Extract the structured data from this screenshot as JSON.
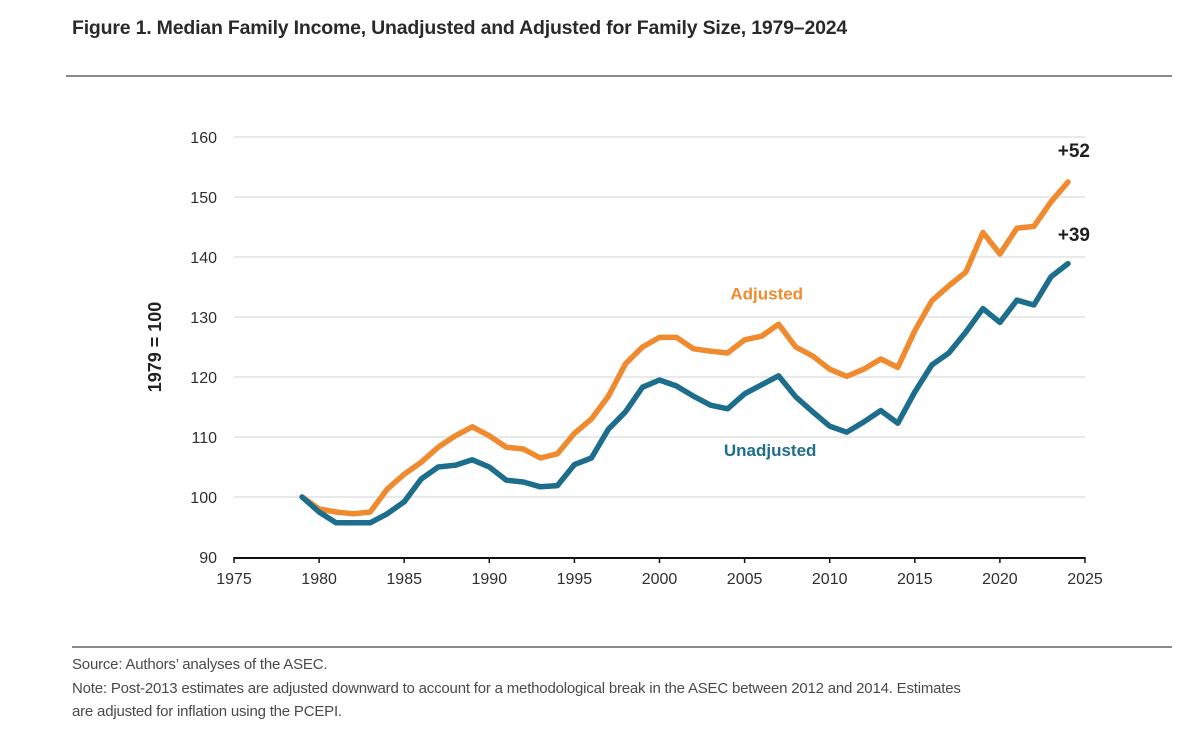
{
  "header": {
    "title": "Figure 1. Median Family Income, Unadjusted and Adjusted for Family Size, 1979–2024"
  },
  "footer": {
    "source": "Source: Authors’ analyses of the ASEC.",
    "note_line1": "Note: Post-2013 estimates are adjusted downward to account for a methodological break in the ASEC between 2012 and 2014. Estimates",
    "note_line2": "are adjusted for inflation using the PCEPI."
  },
  "chart_data": {
    "type": "line",
    "title": "Figure 1. Median Family Income, Unadjusted and Adjusted for Family Size, 1979–2024",
    "xlabel": "",
    "ylabel": "1979 = 100",
    "xlim": [
      1975,
      2025
    ],
    "ylim": [
      90,
      160
    ],
    "xticks": [
      1975,
      1980,
      1985,
      1990,
      1995,
      2000,
      2005,
      2010,
      2015,
      2020,
      2025
    ],
    "yticks": [
      90,
      100,
      110,
      120,
      130,
      140,
      150,
      160
    ],
    "grid": "horizontal",
    "legend": "inline-labels",
    "x": [
      1979,
      1980,
      1981,
      1982,
      1983,
      1984,
      1985,
      1986,
      1987,
      1988,
      1989,
      1990,
      1991,
      1992,
      1993,
      1994,
      1995,
      1996,
      1997,
      1998,
      1999,
      2000,
      2001,
      2002,
      2003,
      2004,
      2005,
      2006,
      2007,
      2008,
      2009,
      2010,
      2011,
      2012,
      2013,
      2014,
      2015,
      2016,
      2017,
      2018,
      2019,
      2020,
      2021,
      2022,
      2023,
      2024
    ],
    "series": [
      {
        "name": "Adjusted",
        "color": "#F08A2E",
        "end_label": "+52",
        "values": [
          100,
          98,
          97.5,
          97.2,
          97.5,
          101.3,
          103.8,
          105.8,
          108.3,
          110.2,
          111.7,
          110.2,
          108.3,
          108,
          106.5,
          107.2,
          110.6,
          113,
          116.8,
          122.2,
          125,
          126.6,
          126.6,
          124.7,
          124.3,
          124,
          126.2,
          126.8,
          128.8,
          125,
          123.5,
          121.3,
          120.1,
          121.3,
          123,
          121.6,
          127.7,
          132.7,
          135.2,
          137.5,
          144.1,
          140.5,
          144.8,
          145.1,
          149.2,
          152.5
        ]
      },
      {
        "name": "Unadjusted",
        "color": "#1C6E8C",
        "end_label": "+39",
        "values": [
          100,
          97.5,
          95.7,
          95.7,
          95.7,
          97.2,
          99.2,
          103,
          105,
          105.3,
          106.2,
          105,
          102.8,
          102.5,
          101.7,
          101.9,
          105.4,
          106.5,
          111.3,
          114.2,
          118.3,
          119.5,
          118.5,
          116.8,
          115.3,
          114.7,
          117.2,
          118.7,
          120.2,
          116.7,
          114.2,
          111.8,
          110.8,
          112.5,
          114.4,
          112.3,
          117.5,
          122,
          124,
          127.5,
          131.4,
          129.1,
          132.8,
          132,
          136.7,
          138.9
        ]
      }
    ],
    "annotations": [
      {
        "text": "Adjusted",
        "x": 2006.3,
        "y": 132.9,
        "series": "Adjusted"
      },
      {
        "text": "Unadjusted",
        "x": 2006.5,
        "y": 106.8,
        "series": "Unadjusted"
      },
      {
        "text": "+52",
        "x": 2023.4,
        "y": 156.7
      },
      {
        "text": "+39",
        "x": 2023.4,
        "y": 142.7
      }
    ]
  }
}
